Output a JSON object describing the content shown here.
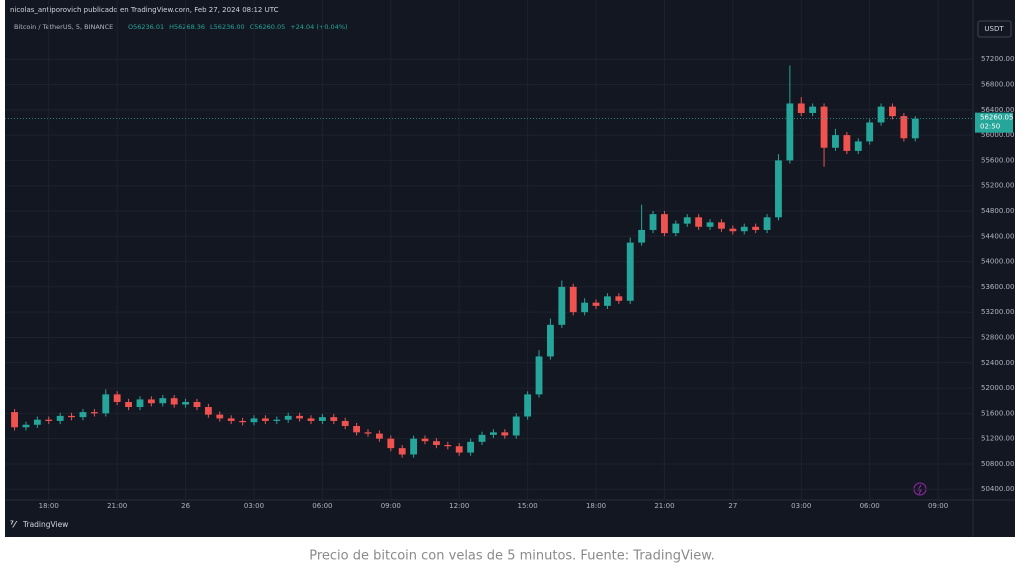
{
  "chart_data": {
    "type": "candlestick",
    "header": "nicolas_antiporovich publicado en TradingView.com, Feb 27, 2024 08:12 UTC",
    "symbol": "Bitcoin / TetherUS, 5, BINANCE",
    "ohlc_legend": [
      "O56236.01",
      "H56268.36",
      "L56236.00",
      "C56260.05",
      "+24.04 (+0.04%)"
    ],
    "currency": "USDT",
    "last_price": {
      "value": 56260.05,
      "label": "56260.05"
    },
    "countdown": "02:50",
    "logo": "TradingView",
    "caption": "Precio de bitcoin con velas de 5 minutos. Fuente: TradingView.",
    "up_color": "#26a69a",
    "down_color": "#ef5350",
    "grid": true,
    "xlim": [
      -1.7,
      40.4
    ],
    "ylim": [
      50230,
      57820
    ],
    "xticks": [
      {
        "value": 0,
        "label": "18:00"
      },
      {
        "value": 3,
        "label": "21:00"
      },
      {
        "value": 6,
        "label": "26"
      },
      {
        "value": 9,
        "label": "03:00"
      },
      {
        "value": 12,
        "label": "06:00"
      },
      {
        "value": 15,
        "label": "09:00"
      },
      {
        "value": 18,
        "label": "12:00"
      },
      {
        "value": 21,
        "label": "15:00"
      },
      {
        "value": 24,
        "label": "18:00"
      },
      {
        "value": 27,
        "label": "21:00"
      },
      {
        "value": 30,
        "label": "27"
      },
      {
        "value": 33,
        "label": "03:00"
      },
      {
        "value": 36,
        "label": "06:00"
      },
      {
        "value": 39,
        "label": "09:00"
      }
    ],
    "yticks": [
      {
        "value": 50400,
        "label": "50400.00"
      },
      {
        "value": 50800,
        "label": "50800.00"
      },
      {
        "value": 51200,
        "label": "51200.00"
      },
      {
        "value": 51600,
        "label": "51600.00"
      },
      {
        "value": 52000,
        "label": "52000.00"
      },
      {
        "value": 52400,
        "label": "52400.00"
      },
      {
        "value": 52800,
        "label": "52800.00"
      },
      {
        "value": 53200,
        "label": "53200.00"
      },
      {
        "value": 53600,
        "label": "53600.00"
      },
      {
        "value": 54000,
        "label": "54000.00"
      },
      {
        "value": 54400,
        "label": "54400.00"
      },
      {
        "value": 54800,
        "label": "54800.00"
      },
      {
        "value": 55200,
        "label": "55200.00"
      },
      {
        "value": 55600,
        "label": "55600.00"
      },
      {
        "value": 56000,
        "label": "56000.00"
      },
      {
        "value": 56400,
        "label": "56400.00"
      },
      {
        "value": 56800,
        "label": "56800.00"
      },
      {
        "value": 57200,
        "label": "57200.00"
      }
    ],
    "x": [
      -1.5,
      -1,
      -0.5,
      0,
      0.5,
      1,
      1.5,
      2,
      2.5,
      3,
      3.5,
      4,
      4.5,
      5,
      5.5,
      6,
      6.5,
      7,
      7.5,
      8,
      8.5,
      9,
      9.5,
      10,
      10.5,
      11,
      11.5,
      12,
      12.5,
      13,
      13.5,
      14,
      14.5,
      15,
      15.5,
      16,
      16.5,
      17,
      17.5,
      18,
      18.5,
      19,
      19.5,
      20,
      20.5,
      21,
      21.5,
      22,
      22.5,
      23,
      23.5,
      24,
      24.5,
      25,
      25.5,
      26,
      26.5,
      27,
      27.5,
      28,
      28.5,
      29,
      29.5,
      30,
      30.5,
      31,
      31.5,
      32,
      32.5,
      33,
      33.5,
      34,
      34.5,
      35,
      35.5,
      36,
      36.5,
      37,
      37.5,
      38
    ],
    "open": [
      51620,
      51380,
      51420,
      51500,
      51480,
      51560,
      51540,
      51620,
      51600,
      51900,
      51780,
      51700,
      51820,
      51760,
      51840,
      51740,
      51780,
      51700,
      51580,
      51520,
      51480,
      51460,
      51520,
      51480,
      51500,
      51560,
      51520,
      51480,
      51540,
      51480,
      51400,
      51300,
      51280,
      51200,
      51050,
      50950,
      51200,
      51160,
      51100,
      51080,
      50980,
      51150,
      51260,
      51300,
      51250,
      51550,
      51900,
      52500,
      53000,
      53600,
      53200,
      53350,
      53300,
      53450,
      53380,
      54300,
      54500,
      54750,
      54450,
      54600,
      54700,
      54550,
      54620,
      54520,
      54480,
      54550,
      54500,
      54700,
      55600,
      56500,
      56350,
      56450,
      55800,
      56000,
      55750,
      55900,
      56200,
      56450,
      56300,
      55950
    ],
    "high": [
      51670,
      51470,
      51550,
      51550,
      51610,
      51610,
      51670,
      51670,
      51980,
      51950,
      51830,
      51870,
      51870,
      51890,
      51890,
      51830,
      51830,
      51750,
      51630,
      51570,
      51530,
      51570,
      51570,
      51550,
      51610,
      51610,
      51570,
      51590,
      51590,
      51530,
      51450,
      51350,
      51330,
      51250,
      51100,
      51250,
      51250,
      51210,
      51150,
      51130,
      51200,
      51310,
      51350,
      51350,
      51600,
      51950,
      52600,
      53100,
      53700,
      53650,
      53420,
      53400,
      53500,
      53500,
      54380,
      54900,
      54800,
      54800,
      54650,
      54750,
      54750,
      54670,
      54670,
      54570,
      54600,
      54600,
      54750,
      55700,
      57100,
      56600,
      56500,
      56500,
      56100,
      56050,
      55950,
      56250,
      56500,
      56500,
      56350,
      56300
    ],
    "low": [
      51330,
      51330,
      51370,
      51430,
      51430,
      51490,
      51490,
      51550,
      51550,
      51730,
      51650,
      51650,
      51710,
      51710,
      51690,
      51690,
      51650,
      51530,
      51470,
      51430,
      51410,
      51410,
      51430,
      51430,
      51450,
      51470,
      51430,
      51430,
      51430,
      51350,
      51250,
      51230,
      51150,
      51000,
      50900,
      50900,
      51110,
      51050,
      51030,
      50930,
      50930,
      51100,
      51210,
      51200,
      51200,
      51500,
      51850,
      52450,
      52950,
      53150,
      53150,
      53250,
      53250,
      53330,
      53330,
      54250,
      54450,
      54400,
      54400,
      54550,
      54500,
      54500,
      54470,
      54430,
      54430,
      54450,
      54450,
      54650,
      55550,
      56300,
      56300,
      55500,
      55750,
      55700,
      55700,
      55850,
      56150,
      56250,
      55900,
      55900
    ],
    "close": [
      51380,
      51420,
      51500,
      51480,
      51560,
      51540,
      51620,
      51600,
      51900,
      51780,
      51700,
      51820,
      51760,
      51840,
      51740,
      51780,
      51700,
      51580,
      51520,
      51480,
      51460,
      51520,
      51480,
      51500,
      51560,
      51520,
      51480,
      51540,
      51480,
      51400,
      51300,
      51280,
      51200,
      51050,
      50950,
      51200,
      51160,
      51100,
      51080,
      50980,
      51150,
      51260,
      51300,
      51250,
      51550,
      51900,
      52500,
      53000,
      53600,
      53200,
      53350,
      53300,
      53450,
      53380,
      54300,
      54500,
      54750,
      54450,
      54600,
      54700,
      54550,
      54620,
      54520,
      54480,
      54550,
      54500,
      54700,
      55600,
      56500,
      56350,
      56450,
      55800,
      56000,
      55750,
      55900,
      56200,
      56450,
      56300,
      55950,
      56260
    ]
  }
}
